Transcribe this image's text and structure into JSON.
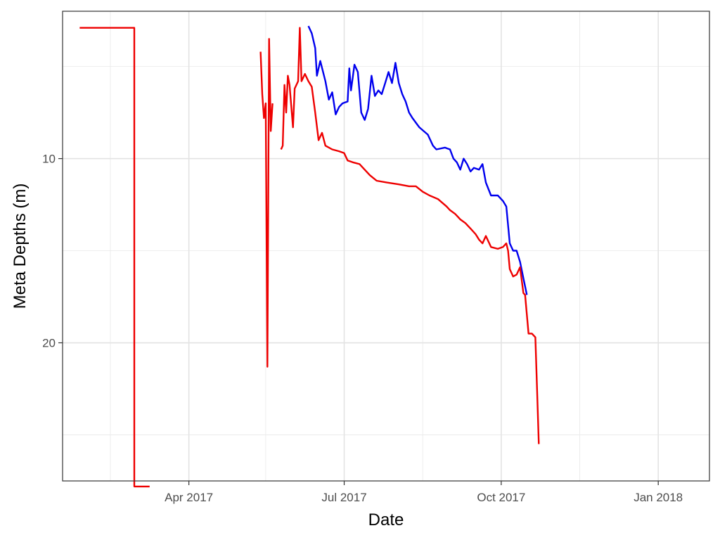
{
  "chart_data": {
    "type": "line",
    "title": "",
    "xlabel": "Date",
    "ylabel": "Meta Depths (m)",
    "x_type": "date",
    "xlim": [
      "2017-01-17",
      "2018-01-31"
    ],
    "ylim": [
      2,
      27.5
    ],
    "y_reversed": true,
    "grid": true,
    "legend": "none",
    "x_ticks": [
      {
        "value": "2017-04-01",
        "label": "Apr 2017"
      },
      {
        "value": "2017-07-01",
        "label": "Jul 2017"
      },
      {
        "value": "2017-10-01",
        "label": "Oct 2017"
      },
      {
        "value": "2018-01-01",
        "label": "Jan 2018"
      }
    ],
    "x_minor_grid": [
      "2017-02-14",
      "2017-05-16",
      "2017-08-16",
      "2017-11-16"
    ],
    "y_ticks": [
      {
        "value": 10,
        "label": "10"
      },
      {
        "value": 20,
        "label": "20"
      }
    ],
    "y_minor_grid": [
      5,
      15,
      25
    ],
    "series": [
      {
        "color": "#0000ee",
        "points": [
          [
            "2017-06-10",
            2.8
          ],
          [
            "2017-06-12",
            3.2
          ],
          [
            "2017-06-14",
            4.0
          ],
          [
            "2017-06-15",
            5.5
          ],
          [
            "2017-06-17",
            4.7
          ],
          [
            "2017-06-20",
            5.8
          ],
          [
            "2017-06-22",
            6.8
          ],
          [
            "2017-06-24",
            6.4
          ],
          [
            "2017-06-26",
            7.6
          ],
          [
            "2017-06-28",
            7.2
          ],
          [
            "2017-06-30",
            7.0
          ],
          [
            "2017-07-03",
            6.9
          ],
          [
            "2017-07-04",
            5.1
          ],
          [
            "2017-07-05",
            6.3
          ],
          [
            "2017-07-07",
            4.9
          ],
          [
            "2017-07-09",
            5.3
          ],
          [
            "2017-07-11",
            7.5
          ],
          [
            "2017-07-13",
            7.9
          ],
          [
            "2017-07-15",
            7.3
          ],
          [
            "2017-07-17",
            5.5
          ],
          [
            "2017-07-19",
            6.6
          ],
          [
            "2017-07-21",
            6.3
          ],
          [
            "2017-07-23",
            6.5
          ],
          [
            "2017-07-25",
            5.9
          ],
          [
            "2017-07-27",
            5.3
          ],
          [
            "2017-07-29",
            5.9
          ],
          [
            "2017-07-31",
            4.8
          ],
          [
            "2017-08-02",
            5.9
          ],
          [
            "2017-08-04",
            6.5
          ],
          [
            "2017-08-06",
            6.9
          ],
          [
            "2017-08-08",
            7.5
          ],
          [
            "2017-08-10",
            7.8
          ],
          [
            "2017-08-14",
            8.3
          ],
          [
            "2017-08-19",
            8.7
          ],
          [
            "2017-08-22",
            9.3
          ],
          [
            "2017-08-24",
            9.5
          ],
          [
            "2017-08-29",
            9.4
          ],
          [
            "2017-09-01",
            9.5
          ],
          [
            "2017-09-03",
            10.0
          ],
          [
            "2017-09-05",
            10.2
          ],
          [
            "2017-09-07",
            10.6
          ],
          [
            "2017-09-09",
            10.0
          ],
          [
            "2017-09-11",
            10.3
          ],
          [
            "2017-09-13",
            10.7
          ],
          [
            "2017-09-15",
            10.5
          ],
          [
            "2017-09-18",
            10.6
          ],
          [
            "2017-09-20",
            10.3
          ],
          [
            "2017-09-22",
            11.3
          ],
          [
            "2017-09-25",
            12.0
          ],
          [
            "2017-09-29",
            12.0
          ],
          [
            "2017-10-02",
            12.3
          ],
          [
            "2017-10-04",
            12.6
          ],
          [
            "2017-10-06",
            14.6
          ],
          [
            "2017-10-08",
            15.0
          ],
          [
            "2017-10-10",
            15.0
          ],
          [
            "2017-10-12",
            15.6
          ],
          [
            "2017-10-14",
            16.5
          ],
          [
            "2017-10-16",
            17.4
          ]
        ]
      },
      {
        "color": "#ee0000",
        "points": [
          [
            "2017-01-27",
            2.9
          ],
          [
            "2017-02-28",
            2.9
          ],
          [
            "2017-02-28",
            27.8
          ],
          [
            "2017-03-09",
            27.8
          ],
          null,
          [
            "2017-05-13",
            4.2
          ],
          [
            "2017-05-14",
            6.5
          ],
          [
            "2017-05-15",
            7.8
          ],
          [
            "2017-05-16",
            7.0
          ],
          [
            "2017-05-17",
            21.3
          ],
          [
            "2017-05-18",
            3.5
          ],
          [
            "2017-05-19",
            8.5
          ],
          [
            "2017-05-20",
            7.0
          ],
          null,
          [
            "2017-05-25",
            9.5
          ],
          [
            "2017-05-26",
            9.3
          ],
          [
            "2017-05-27",
            6.0
          ],
          [
            "2017-05-28",
            7.5
          ],
          [
            "2017-05-29",
            5.5
          ],
          [
            "2017-05-30",
            6.0
          ],
          [
            "2017-06-01",
            8.3
          ],
          [
            "2017-06-02",
            6.2
          ],
          [
            "2017-06-04",
            5.8
          ],
          [
            "2017-06-05",
            2.9
          ],
          [
            "2017-06-06",
            5.8
          ],
          [
            "2017-06-08",
            5.4
          ],
          [
            "2017-06-10",
            5.8
          ],
          [
            "2017-06-12",
            6.1
          ],
          [
            "2017-06-14",
            7.5
          ],
          [
            "2017-06-16",
            9.0
          ],
          [
            "2017-06-18",
            8.6
          ],
          [
            "2017-06-20",
            9.3
          ],
          [
            "2017-06-24",
            9.5
          ],
          [
            "2017-06-28",
            9.6
          ],
          [
            "2017-07-01",
            9.7
          ],
          [
            "2017-07-03",
            10.1
          ],
          [
            "2017-07-06",
            10.2
          ],
          [
            "2017-07-10",
            10.3
          ],
          [
            "2017-07-13",
            10.6
          ],
          [
            "2017-07-16",
            10.9
          ],
          [
            "2017-07-20",
            11.2
          ],
          [
            "2017-07-26",
            11.3
          ],
          [
            "2017-08-02",
            11.4
          ],
          [
            "2017-08-08",
            11.5
          ],
          [
            "2017-08-12",
            11.5
          ],
          [
            "2017-08-16",
            11.8
          ],
          [
            "2017-08-20",
            12.0
          ],
          [
            "2017-08-25",
            12.2
          ],
          [
            "2017-08-30",
            12.6
          ],
          [
            "2017-09-01",
            12.8
          ],
          [
            "2017-09-04",
            13.0
          ],
          [
            "2017-09-07",
            13.3
          ],
          [
            "2017-09-10",
            13.5
          ],
          [
            "2017-09-13",
            13.8
          ],
          [
            "2017-09-16",
            14.1
          ],
          [
            "2017-09-18",
            14.4
          ],
          [
            "2017-09-20",
            14.6
          ],
          [
            "2017-09-22",
            14.2
          ],
          [
            "2017-09-25",
            14.8
          ],
          [
            "2017-09-29",
            14.9
          ],
          [
            "2017-10-02",
            14.8
          ],
          [
            "2017-10-04",
            14.6
          ],
          [
            "2017-10-05",
            15.0
          ],
          [
            "2017-10-06",
            16.0
          ],
          [
            "2017-10-08",
            16.4
          ],
          [
            "2017-10-10",
            16.3
          ],
          [
            "2017-10-12",
            15.9
          ],
          [
            "2017-10-14",
            17.3
          ],
          [
            "2017-10-15",
            17.4
          ],
          [
            "2017-10-17",
            19.5
          ],
          [
            "2017-10-19",
            19.5
          ],
          [
            "2017-10-21",
            19.7
          ],
          [
            "2017-10-22",
            22.5
          ],
          [
            "2017-10-23",
            25.5
          ]
        ]
      }
    ]
  }
}
